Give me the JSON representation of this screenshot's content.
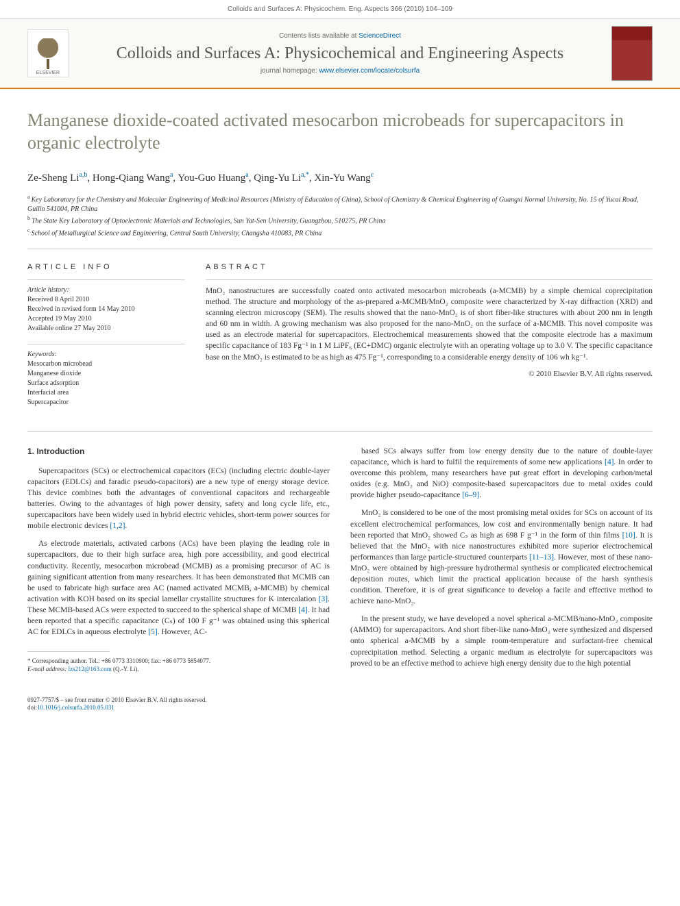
{
  "header": {
    "citation": "Colloids and Surfaces A: Physicochem. Eng. Aspects 366 (2010) 104–109",
    "contents_prefix": "Contents lists available at ",
    "contents_link": "ScienceDirect",
    "journal_title": "Colloids and Surfaces A: Physicochemical and Engineering Aspects",
    "homepage_prefix": "journal homepage: ",
    "homepage_url": "www.elsevier.com/locate/colsurfa",
    "elsevier_label": "ELSEVIER"
  },
  "article": {
    "title": "Manganese dioxide-coated activated mesocarbon microbeads for supercapacitors in organic electrolyte",
    "authors_html": "Ze-Sheng Li",
    "authors": [
      {
        "name": "Ze-Sheng Li",
        "sup": "a,b"
      },
      {
        "name": "Hong-Qiang Wang",
        "sup": "a"
      },
      {
        "name": "You-Guo Huang",
        "sup": "a"
      },
      {
        "name": "Qing-Yu Li",
        "sup": "a,*"
      },
      {
        "name": "Xin-Yu Wang",
        "sup": "c"
      }
    ],
    "affiliations": [
      {
        "sup": "a",
        "text": "Key Laboratory for the Chemistry and Molecular Engineering of Medicinal Resources (Ministry of Education of China), School of Chemistry & Chemical Engineering of Guangxi Normal University, No. 15 of Yucai Road, Guilin 541004, PR China"
      },
      {
        "sup": "b",
        "text": "The State Key Laboratory of Optoelectronic Materials and Technologies, Sun Yat-Sen University, Guangzhou, 510275, PR China"
      },
      {
        "sup": "c",
        "text": "School of Metallurgical Science and Engineering, Central South University, Changsha 410083, PR China"
      }
    ]
  },
  "info": {
    "heading": "ARTICLE INFO",
    "history_label": "Article history:",
    "history": [
      "Received 8 April 2010",
      "Received in revised form 14 May 2010",
      "Accepted 19 May 2010",
      "Available online 27 May 2010"
    ],
    "keywords_label": "Keywords:",
    "keywords": [
      "Mesocarbon microbead",
      "Manganese dioxide",
      "Surface adsorption",
      "Interfacial area",
      "Supercapacitor"
    ]
  },
  "abstract": {
    "heading": "ABSTRACT",
    "text": "MnO₂ nanostructures are successfully coated onto activated mesocarbon microbeads (a-MCMB) by a simple chemical coprecipitation method. The structure and morphology of the as-prepared a-MCMB/MnO₂ composite were characterized by X-ray diffraction (XRD) and scanning electron microscopy (SEM). The results showed that the nano-MnO₂ is of short fiber-like structures with about 200 nm in length and 60 nm in width. A growing mechanism was also proposed for the nano-MnO₂ on the surface of a-MCMB. This novel composite was used as an electrode material for supercapacitors. Electrochemical measurements showed that the composite electrode has a maximum specific capacitance of 183 Fg⁻¹ in 1 M LiPF₆ (EC+DMC) organic electrolyte with an operating voltage up to 3.0 V. The specific capacitance base on the MnO₂ is estimated to be as high as 475 Fg⁻¹, corresponding to a considerable energy density of 106 wh kg⁻¹.",
    "copyright": "© 2010 Elsevier B.V. All rights reserved."
  },
  "body": {
    "section_heading": "1. Introduction",
    "col1": {
      "p1": "Supercapacitors (SCs) or electrochemical capacitors (ECs) (including electric double-layer capacitors (EDLCs) and faradic pseudo-capacitors) are a new type of energy storage device. This device combines both the advantages of conventional capacitors and rechargeable batteries. Owing to the advantages of high power density, safety and long cycle life, etc., supercapacitors have been widely used in hybrid electric vehicles, short-term power sources for mobile electronic devices [1,2].",
      "p2": "As electrode materials, activated carbons (ACs) have been playing the leading role in supercapacitors, due to their high surface area, high pore accessibility, and good electrical conductivity. Recently, mesocarbon microbead (MCMB) as a promising precursor of AC is gaining significant attention from many researchers. It has been demonstrated that MCMB can be used to fabricate high surface area AC (named activated MCMB, a-MCMB) by chemical activation with KOH based on its special lamellar crystallite structures for K intercalation [3]. These MCMB-based ACs were expected to succeed to the spherical shape of MCMB [4]. It had been reported that a specific capacitance (Cₛ) of 100 F g⁻¹ was obtained using this spherical AC for EDLCs in aqueous electrolyte [5]. However, AC-"
    },
    "col2": {
      "p1": "based SCs always suffer from low energy density due to the nature of double-layer capacitance, which is hard to fulfil the requirements of some new applications [4]. In order to overcome this problem, many researchers have put great effort in developing carbon/metal oxides (e.g. MnO₂ and NiO) composite-based supercapacitors due to metal oxides could provide higher pseudo-capacitance [6–9].",
      "p2": "MnO₂ is considered to be one of the most promising metal oxides for SCs on account of its excellent electrochemical performances, low cost and environmentally benign nature. It had been reported that MnO₂ showed Cₛ as high as 698 F g⁻¹ in the form of thin films [10]. It is believed that the MnO₂ with nice nanostructures exhibited more superior electrochemical performances than large particle-structured counterparts [11–13]. However, most of these nano-MnO₂ were obtained by high-pressure hydrothermal synthesis or complicated electrochemical deposition routes, which limit the practical application because of the harsh synthesis condition. Therefore, it is of great significance to develop a facile and effective method to achieve nano-MnO₂.",
      "p3": "In the present study, we have developed a novel spherical a-MCMB/nano-MnO₂ composite (AMMO) for supercapacitors. And short fiber-like nano-MnO₂ were synthesized and dispersed onto spherical a-MCMB by a simple room-temperature and surfactant-free chemical coprecipitation method. Selecting a organic medium as electrolyte for supercapacitors was proved to be an effective method to achieve high energy density due to the high potential"
    }
  },
  "footnote": {
    "corresponding": "* Corresponding author. Tel.: +86 0773 3310900; fax: +86 0773 5854077.",
    "email_label": "E-mail address:",
    "email": "lzs212@163.com",
    "email_suffix": "(Q.-Y. Li)."
  },
  "footer": {
    "issn": "0927-7757/$ – see front matter © 2010 Elsevier B.V. All rights reserved.",
    "doi_label": "doi:",
    "doi": "10.1016/j.colsurfa.2010.05.031"
  },
  "colors": {
    "accent_orange": "#e67817",
    "link_blue": "#0066aa",
    "title_olive": "#838373",
    "text": "#333333",
    "muted": "#666666",
    "border": "#cccccc",
    "cover_red": "#8b1a1a"
  }
}
